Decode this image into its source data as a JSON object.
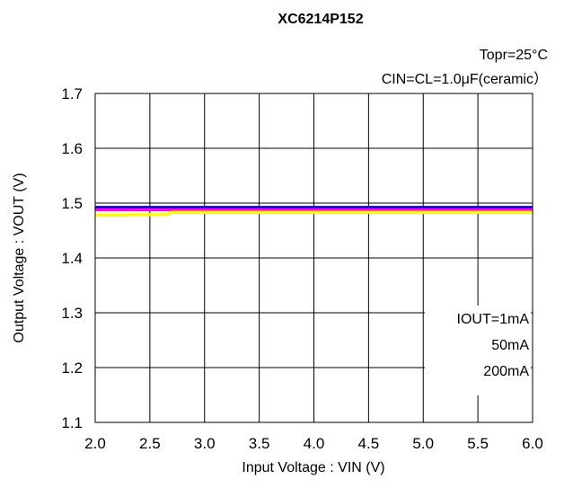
{
  "chart_data": {
    "type": "line",
    "title": "XC6214P152",
    "conditions": [
      "Topr=25°C",
      "CIN=CL=1.0μF(ceramic）"
    ],
    "xlabel": "Input Voltage : VIN (V)",
    "ylabel": "Output Voltage : VOUT (V)",
    "xlim": [
      2.0,
      6.0
    ],
    "ylim": [
      1.1,
      1.7
    ],
    "xticks": [
      "2.0",
      "2.5",
      "3.0",
      "3.5",
      "4.0",
      "4.5",
      "5.0",
      "5.5",
      "6.0"
    ],
    "yticks": [
      "1.1",
      "1.2",
      "1.3",
      "1.4",
      "1.5",
      "1.6",
      "1.7"
    ],
    "grid": true,
    "legend_position": "bottom-right",
    "series": [
      {
        "name": "IOUT=1mA",
        "color": "#0000cc",
        "points": [
          [
            2.0,
            1.492
          ],
          [
            2.7,
            1.492
          ],
          [
            6.0,
            1.492
          ]
        ]
      },
      {
        "name": "50mA",
        "color": "#ff00ff",
        "points": [
          [
            2.0,
            1.488
          ],
          [
            2.7,
            1.488
          ],
          [
            6.0,
            1.488
          ]
        ]
      },
      {
        "name": "200mA",
        "color": "#ffff00",
        "points": [
          [
            2.0,
            1.478
          ],
          [
            2.65,
            1.479
          ],
          [
            2.7,
            1.483
          ],
          [
            6.0,
            1.483
          ]
        ]
      }
    ]
  }
}
